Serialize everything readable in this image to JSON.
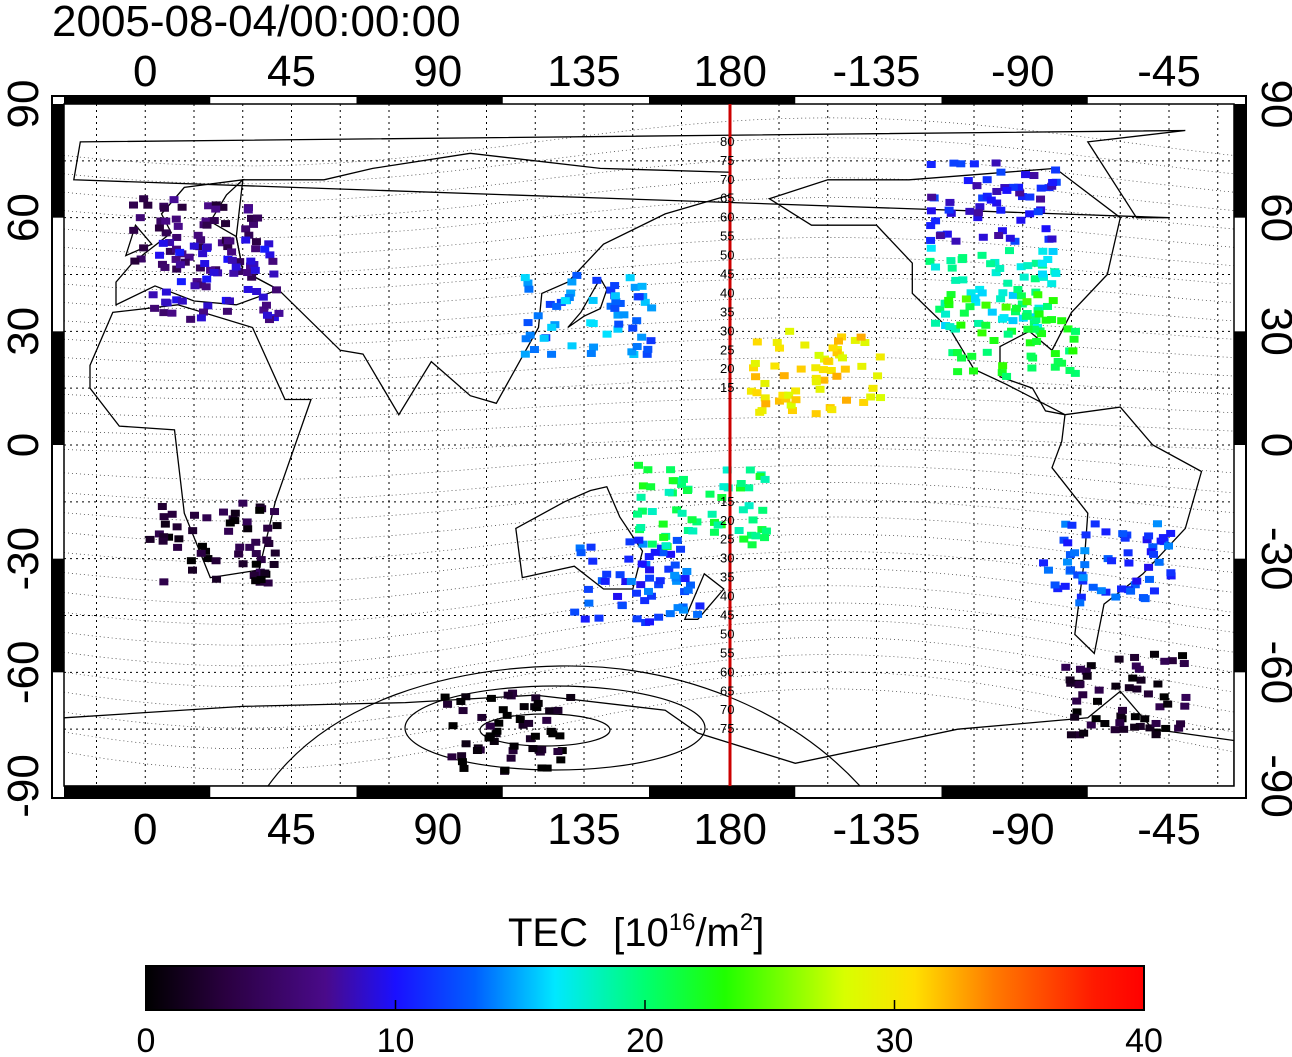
{
  "title": "2005-08-04/00:00:00",
  "map": {
    "lon_ticks": [
      "0",
      "45",
      "90",
      "135",
      "180",
      "-135",
      "-90",
      "-45"
    ],
    "lat_ticks": [
      "90",
      "60",
      "30",
      "0",
      "-30",
      "-60",
      "-90"
    ],
    "meridian_label": "180",
    "meridian_lat_labels_north": [
      "80",
      "75",
      "70",
      "65",
      "60",
      "55",
      "50",
      "45",
      "40",
      "35",
      "30",
      "25",
      "20",
      "15"
    ],
    "meridian_lat_labels_south": [
      "15",
      "20",
      "25",
      "30",
      "35",
      "40",
      "45",
      "50",
      "55",
      "60",
      "65",
      "70",
      "75"
    ],
    "meridian_color": "#cc0000"
  },
  "colorbar": {
    "label": "TEC",
    "unit_base": "[10",
    "unit_exp": "16",
    "unit_mid": "/m",
    "unit_exp2": "2",
    "unit_close": "]",
    "ticks": [
      "0",
      "10",
      "20",
      "30",
      "40"
    ],
    "min": 0,
    "max": 40
  },
  "tec_clusters": [
    {
      "lon": 15,
      "lat": 55,
      "tec": 5
    },
    {
      "lon": 20,
      "lat": 45,
      "tec": 8
    },
    {
      "lon": -100,
      "lat": 42,
      "tec": 18
    },
    {
      "lon": -95,
      "lat": 30,
      "tec": 22
    },
    {
      "lon": -100,
      "lat": 65,
      "tec": 10
    },
    {
      "lon": 135,
      "lat": 35,
      "tec": 14
    },
    {
      "lon": 150,
      "lat": -35,
      "tec": 12
    },
    {
      "lon": 170,
      "lat": -15,
      "tec": 20
    },
    {
      "lon": -65,
      "lat": -30,
      "tec": 12
    },
    {
      "lon": 20,
      "lat": -25,
      "tec": 2
    },
    {
      "lon": 110,
      "lat": -75,
      "tec": 1
    },
    {
      "lon": -60,
      "lat": -65,
      "tec": 2
    },
    {
      "lon": -155,
      "lat": 20,
      "tec": 30
    }
  ]
}
